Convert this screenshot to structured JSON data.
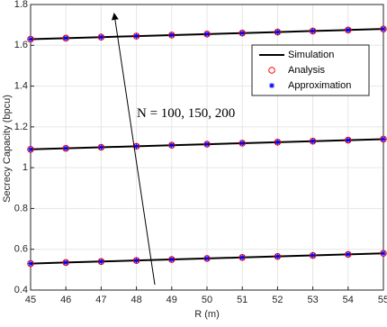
{
  "chart_data": {
    "type": "line",
    "x": [
      45,
      46,
      47,
      48,
      49,
      50,
      51,
      52,
      53,
      54,
      55
    ],
    "xlabel": "R (m)",
    "ylabel": "Secrecy Capacity (bpcu)",
    "xlim": [
      45,
      55
    ],
    "xticks": [
      45,
      46,
      47,
      48,
      49,
      50,
      51,
      52,
      53,
      54,
      55
    ],
    "ylim": [
      0.4,
      1.8
    ],
    "yticks": [
      0.4,
      0.6,
      0.8,
      1,
      1.2,
      1.4,
      1.6,
      1.8
    ],
    "grid": true,
    "legend": "upper right",
    "annotation": "N = 100, 150, 200",
    "series": [
      {
        "name": "Simulation",
        "color": "#000000",
        "marker": "none",
        "values": [
          [
            1.63,
            1.635,
            1.64,
            1.645,
            1.65,
            1.655,
            1.66,
            1.665,
            1.67,
            1.675,
            1.68
          ],
          [
            1.09,
            1.095,
            1.1,
            1.105,
            1.11,
            1.115,
            1.12,
            1.125,
            1.13,
            1.135,
            1.14
          ],
          [
            0.53,
            0.535,
            0.54,
            0.545,
            0.55,
            0.555,
            0.56,
            0.565,
            0.57,
            0.575,
            0.58
          ]
        ]
      },
      {
        "name": "Analysis",
        "color": "#ff0000",
        "marker": "circle",
        "values": [
          [
            1.63,
            1.635,
            1.64,
            1.645,
            1.65,
            1.655,
            1.66,
            1.665,
            1.67,
            1.675,
            1.68
          ],
          [
            1.09,
            1.095,
            1.1,
            1.105,
            1.11,
            1.115,
            1.12,
            1.125,
            1.13,
            1.135,
            1.14
          ],
          [
            0.53,
            0.535,
            0.54,
            0.545,
            0.55,
            0.555,
            0.56,
            0.565,
            0.57,
            0.575,
            0.58
          ]
        ]
      },
      {
        "name": "Approximation",
        "color": "#0000ff",
        "marker": "asterisk",
        "values": [
          [
            1.63,
            1.635,
            1.64,
            1.645,
            1.65,
            1.655,
            1.66,
            1.665,
            1.67,
            1.675,
            1.68
          ],
          [
            1.09,
            1.095,
            1.1,
            1.105,
            1.11,
            1.115,
            1.12,
            1.125,
            1.13,
            1.135,
            1.14
          ],
          [
            0.53,
            0.535,
            0.54,
            0.545,
            0.55,
            0.555,
            0.56,
            0.565,
            0.57,
            0.575,
            0.58
          ]
        ]
      }
    ]
  }
}
